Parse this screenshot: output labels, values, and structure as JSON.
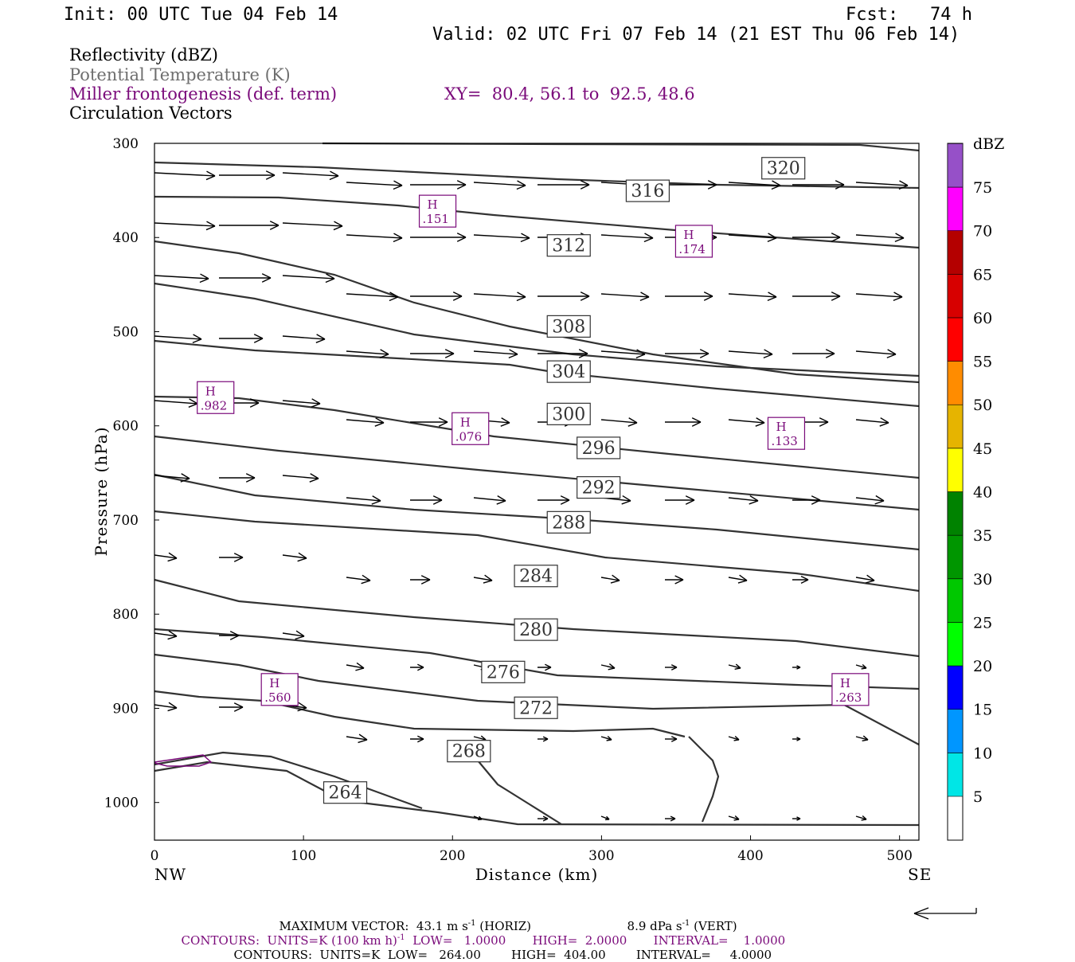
{
  "header": {
    "init": "Init: 00 UTC Tue 04 Feb 14",
    "fcst": "Fcst:   74 h",
    "valid": "Valid: 02 UTC Fri 07 Feb 14 (21 EST Thu 06 Feb 14)"
  },
  "legend": {
    "reflectivity": "Reflectivity (dBZ)",
    "theta": "Potential Temperature (K)",
    "frontogenesis": "Miller frontogenesis (def. term)",
    "xy": "XY=  80.4, 56.1 to  92.5, 48.6",
    "vectors": "Circulation Vectors"
  },
  "chart_data": {
    "type": "cross-section",
    "xlabel": "Distance (km)",
    "ylabel": "Pressure (hPa)",
    "xlim": [
      0,
      513
    ],
    "ylim": [
      1040,
      300
    ],
    "x_ticks": [
      "0",
      "100",
      "200",
      "300",
      "400",
      "500"
    ],
    "y_ticks": [
      "300",
      "400",
      "500",
      "600",
      "700",
      "800",
      "900",
      "1000"
    ],
    "x_end_labels": {
      "left": "NW",
      "right": "SE"
    },
    "colorbar": {
      "title": "dBZ",
      "labels": [
        "5",
        "10",
        "15",
        "20",
        "25",
        "30",
        "35",
        "40",
        "45",
        "50",
        "55",
        "60",
        "65",
        "70",
        "75"
      ],
      "colors": [
        "#00e6e6",
        "#0096ff",
        "#0000ff",
        "#00ff00",
        "#00c800",
        "#009600",
        "#008200",
        "#ffff00",
        "#e6b400",
        "#ff8c00",
        "#ff0000",
        "#d70000",
        "#b40000",
        "#ff00ff",
        "#9650c8"
      ]
    },
    "theta_labels": [
      "320",
      "316",
      "312",
      "308",
      "304",
      "300",
      "296",
      "292",
      "288",
      "284",
      "280",
      "276",
      "272",
      "268",
      "264"
    ],
    "theta_label_positions": [
      {
        "text": "320",
        "x": 422,
        "p": 326
      },
      {
        "text": "316",
        "x": 331,
        "p": 350
      },
      {
        "text": "312",
        "x": 278,
        "p": 408
      },
      {
        "text": "308",
        "x": 278,
        "p": 494
      },
      {
        "text": "304",
        "x": 278,
        "p": 542
      },
      {
        "text": "300",
        "x": 278,
        "p": 587
      },
      {
        "text": "296",
        "x": 298,
        "p": 623
      },
      {
        "text": "292",
        "x": 298,
        "p": 665
      },
      {
        "text": "288",
        "x": 278,
        "p": 702
      },
      {
        "text": "284",
        "x": 256,
        "p": 759
      },
      {
        "text": "280",
        "x": 256,
        "p": 816
      },
      {
        "text": "276",
        "x": 234,
        "p": 861
      },
      {
        "text": "272",
        "x": 256,
        "p": 899
      },
      {
        "text": "268",
        "x": 211,
        "p": 945
      },
      {
        "text": "264",
        "x": 128,
        "p": 989
      }
    ],
    "frontogenesis_maxima": [
      {
        "label": "H",
        "value": ".151",
        "x": 190,
        "p": 372
      },
      {
        "label": "H",
        "value": ".174",
        "x": 362,
        "p": 404
      },
      {
        "label": "H",
        "value": ".982",
        "x": 41,
        "p": 570
      },
      {
        "label": "H",
        "value": ".076",
        "x": 212,
        "p": 603
      },
      {
        "label": "H",
        "value": ".133",
        "x": 424,
        "p": 608
      },
      {
        "label": "H",
        "value": ".560",
        "x": 84,
        "p": 880
      },
      {
        "label": "H",
        "value": ".263",
        "x": 467,
        "p": 880
      }
    ]
  },
  "footer": {
    "max_vector": "MAXIMUM VECTOR:  43.1 m s",
    "max_vector_sup": "-1",
    "max_vector_horiz": " (HORIZ)",
    "max_vert": "8.9 dPa s",
    "max_vert_sup": "-1",
    "max_vert_tail": " (VERT)",
    "contours1": "CONTOURS:  UNITS=K (100 km h)",
    "contours1_sup": "-1",
    "contours1_tail": "  LOW=   1.0000       HIGH=  2.0000       INTERVAL=    1.0000",
    "contours2": "CONTOURS:  UNITS=K  LOW=   264.00        HIGH=  404.00        INTERVAL=     4.0000"
  },
  "colors": {
    "purple": "#7a0a7a",
    "contour": "#333333"
  }
}
